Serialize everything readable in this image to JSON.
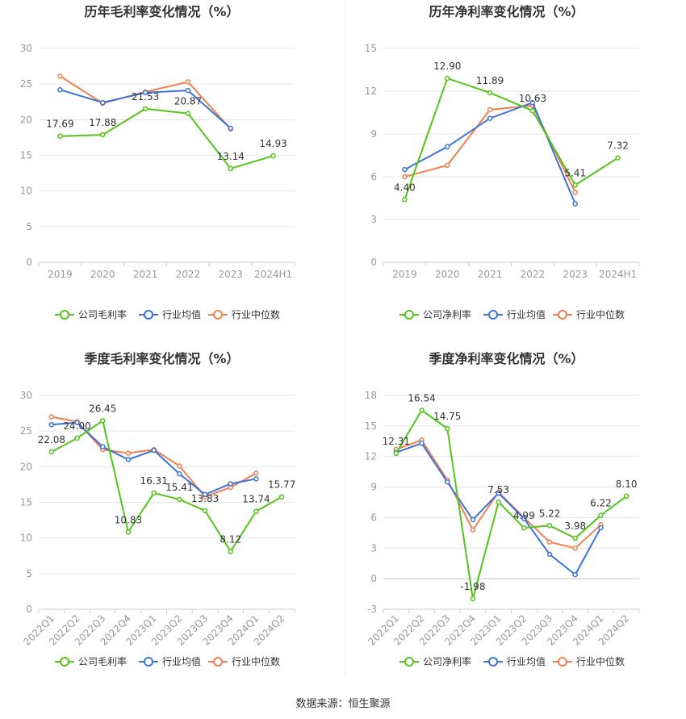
{
  "footer": "数据来源：恒生聚源",
  "legend_icons": {
    "company": "circle-line-marker-icon",
    "avg": "circle-line-marker-icon",
    "median": "circle-line-marker-icon"
  },
  "colors": {
    "company": "#52c41a",
    "avg": "#3b73d6",
    "median": "#f08050",
    "grid": "#e6e6e6",
    "axis": "#999999",
    "title": "#333333"
  },
  "chart_data": [
    {
      "type": "line",
      "title": "历年毛利率变化情况（%）",
      "categories": [
        "2019",
        "2020",
        "2021",
        "2022",
        "2023",
        "2024H1"
      ],
      "ylim": [
        0,
        30
      ],
      "yticks": [
        0,
        5,
        10,
        15,
        20,
        25,
        30
      ],
      "rotate_x": false,
      "series": [
        {
          "name": "公司毛利率",
          "key": "company",
          "values": [
            17.69,
            17.88,
            21.53,
            20.87,
            13.14,
            14.93
          ],
          "labels": true
        },
        {
          "name": "行业均值",
          "key": "avg",
          "values": [
            24.2,
            22.4,
            23.8,
            24.1,
            18.8,
            null
          ],
          "labels": false
        },
        {
          "name": "行业中位数",
          "key": "median",
          "values": [
            26.1,
            22.3,
            23.9,
            25.3,
            18.7,
            null
          ],
          "labels": false
        }
      ]
    },
    {
      "type": "line",
      "title": "历年净利率变化情况（%）",
      "categories": [
        "2019",
        "2020",
        "2021",
        "2022",
        "2023",
        "2024H1"
      ],
      "ylim": [
        0,
        15
      ],
      "yticks": [
        0,
        3,
        6,
        9,
        12,
        15
      ],
      "rotate_x": false,
      "series": [
        {
          "name": "公司净利率",
          "key": "company",
          "values": [
            4.4,
            12.9,
            11.89,
            10.63,
            5.41,
            7.32
          ],
          "labels": true
        },
        {
          "name": "行业均值",
          "key": "avg",
          "values": [
            6.5,
            8.1,
            10.1,
            11.2,
            4.1,
            null
          ],
          "labels": false
        },
        {
          "name": "行业中位数",
          "key": "median",
          "values": [
            6.0,
            6.8,
            10.7,
            11.0,
            4.9,
            null
          ],
          "labels": false
        }
      ]
    },
    {
      "type": "line",
      "title": "季度毛利率变化情况（%）",
      "categories": [
        "2022Q1",
        "2022Q2",
        "2022Q3",
        "2022Q4",
        "2023Q1",
        "2023Q2",
        "2023Q3",
        "2023Q4",
        "2024Q1",
        "2024Q2"
      ],
      "ylim": [
        0,
        30
      ],
      "yticks": [
        0,
        5,
        10,
        15,
        20,
        25,
        30
      ],
      "rotate_x": true,
      "series": [
        {
          "name": "公司毛利率",
          "key": "company",
          "values": [
            22.08,
            24.0,
            26.45,
            10.83,
            16.31,
            15.41,
            13.83,
            8.12,
            13.74,
            15.77
          ],
          "labels": true
        },
        {
          "name": "行业均值",
          "key": "avg",
          "values": [
            25.9,
            26.2,
            22.8,
            21.0,
            22.3,
            19.0,
            16.1,
            17.6,
            18.3,
            null
          ],
          "labels": false
        },
        {
          "name": "行业中位数",
          "key": "median",
          "values": [
            27.0,
            26.3,
            22.4,
            21.9,
            22.4,
            20.1,
            15.8,
            17.1,
            19.1,
            null
          ],
          "labels": false
        }
      ]
    },
    {
      "type": "line",
      "title": "季度净利率变化情况（%）",
      "categories": [
        "2022Q1",
        "2022Q2",
        "2022Q3",
        "2022Q4",
        "2023Q1",
        "2023Q2",
        "2023Q3",
        "2023Q4",
        "2024Q1",
        "2024Q2"
      ],
      "ylim": [
        -3,
        18
      ],
      "yticks": [
        -3,
        0,
        3,
        6,
        9,
        12,
        15,
        18
      ],
      "rotate_x": true,
      "series": [
        {
          "name": "公司净利率",
          "key": "company",
          "values": [
            12.31,
            16.54,
            14.75,
            -1.98,
            7.53,
            4.99,
            5.22,
            3.98,
            6.22,
            8.1
          ],
          "labels": true
        },
        {
          "name": "行业均值",
          "key": "avg",
          "values": [
            12.4,
            13.3,
            9.5,
            5.8,
            8.4,
            5.9,
            2.4,
            0.4,
            5.0,
            null
          ],
          "labels": false
        },
        {
          "name": "行业中位数",
          "key": "median",
          "values": [
            12.7,
            13.6,
            9.7,
            4.8,
            8.5,
            6.0,
            3.6,
            3.0,
            5.3,
            null
          ],
          "labels": false
        }
      ]
    }
  ]
}
